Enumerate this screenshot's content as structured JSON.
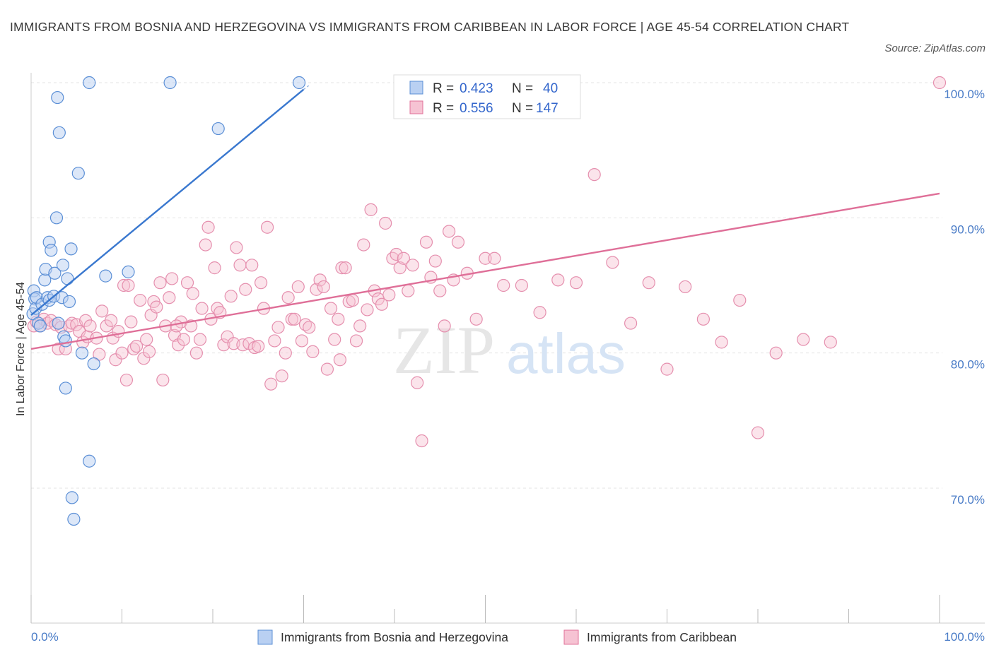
{
  "title": "IMMIGRANTS FROM BOSNIA AND HERZEGOVINA VS IMMIGRANTS FROM CARIBBEAN IN LABOR FORCE | AGE 45-54 CORRELATION CHART",
  "source": "Source: ZipAtlas.com",
  "watermark": {
    "zip": "ZIP",
    "atlas": "atlas"
  },
  "colors": {
    "blue": "#5b8fd6",
    "blue_fill": "#b9d0f2",
    "pink": "#e0729a",
    "pink_fill": "#f6c3d3",
    "tick": "#4a7cc7"
  },
  "legend": {
    "r_label": "R =",
    "n_label": "N =",
    "rows": [
      {
        "r": "0.423",
        "n": "40"
      },
      {
        "r": "0.556",
        "n": "147"
      }
    ]
  },
  "chart_data": {
    "type": "scatter",
    "title": "IMMIGRANTS FROM BOSNIA AND HERZEGOVINA VS IMMIGRANTS FROM CARIBBEAN IN LABOR FORCE | AGE 45-54 CORRELATION CHART",
    "xlabel": "",
    "ylabel": "In Labor Force | Age 45-54",
    "xlim": [
      0,
      100
    ],
    "ylim": [
      60,
      100
    ],
    "x_tick_labels": [
      "0.0%",
      "100.0%"
    ],
    "y_ticks": [
      70,
      80,
      90,
      100
    ],
    "y_tick_labels": [
      "70.0%",
      "80.0%",
      "90.0%",
      "100.0%"
    ],
    "grid": true,
    "legend_position": "top-center",
    "series": [
      {
        "name": "Immigrants from Bosnia and Herzegovina",
        "r": 0.423,
        "n": 40,
        "trend": [
          [
            0.0,
            82.8
          ],
          [
            30.0,
            99.5
          ]
        ],
        "points": [
          [
            0.2,
            82.9
          ],
          [
            0.3,
            84.6
          ],
          [
            0.4,
            84.0
          ],
          [
            0.5,
            83.3
          ],
          [
            0.6,
            84.1
          ],
          [
            0.8,
            82.2
          ],
          [
            1.0,
            82.0
          ],
          [
            1.2,
            83.6
          ],
          [
            1.5,
            85.4
          ],
          [
            1.6,
            86.2
          ],
          [
            1.8,
            84.1
          ],
          [
            2.0,
            83.9
          ],
          [
            2.0,
            88.2
          ],
          [
            2.2,
            87.6
          ],
          [
            2.5,
            84.2
          ],
          [
            2.6,
            85.9
          ],
          [
            2.8,
            90.0
          ],
          [
            2.9,
            98.9
          ],
          [
            3.1,
            96.3
          ],
          [
            3.4,
            84.1
          ],
          [
            3.5,
            86.5
          ],
          [
            3.6,
            81.2
          ],
          [
            3.8,
            80.9
          ],
          [
            3.8,
            77.4
          ],
          [
            4.0,
            85.5
          ],
          [
            4.2,
            83.8
          ],
          [
            4.4,
            87.7
          ],
          [
            4.5,
            69.3
          ],
          [
            4.7,
            67.7
          ],
          [
            5.2,
            93.3
          ],
          [
            5.6,
            80.0
          ],
          [
            6.4,
            100.0
          ],
          [
            6.4,
            72.0
          ],
          [
            6.9,
            79.2
          ],
          [
            8.2,
            85.7
          ],
          [
            10.7,
            86.0
          ],
          [
            15.3,
            100.0
          ],
          [
            20.6,
            96.6
          ],
          [
            29.5,
            100.0
          ],
          [
            3.0,
            82.2
          ]
        ]
      },
      {
        "name": "Immigrants from Caribbean",
        "r": 0.556,
        "n": 147,
        "trend": [
          [
            0.0,
            80.3
          ],
          [
            100.0,
            91.8
          ]
        ],
        "points": [
          [
            0.3,
            82.0
          ],
          [
            0.6,
            82.3
          ],
          [
            1.0,
            82.0
          ],
          [
            1.4,
            82.5
          ],
          [
            1.8,
            82.2
          ],
          [
            2.2,
            82.4
          ],
          [
            2.7,
            82.1
          ],
          [
            3.0,
            80.3
          ],
          [
            3.3,
            81.9
          ],
          [
            3.8,
            80.3
          ],
          [
            4.2,
            82.0
          ],
          [
            4.5,
            82.2
          ],
          [
            5.0,
            82.1
          ],
          [
            5.3,
            81.6
          ],
          [
            5.7,
            80.8
          ],
          [
            6.0,
            82.4
          ],
          [
            6.2,
            81.2
          ],
          [
            6.5,
            82.0
          ],
          [
            7.2,
            81.1
          ],
          [
            7.5,
            79.9
          ],
          [
            7.8,
            83.1
          ],
          [
            8.3,
            82.0
          ],
          [
            8.8,
            82.4
          ],
          [
            9.0,
            81.1
          ],
          [
            9.3,
            79.5
          ],
          [
            9.6,
            81.6
          ],
          [
            10.0,
            80.0
          ],
          [
            10.2,
            85.0
          ],
          [
            10.5,
            78.0
          ],
          [
            10.7,
            85.0
          ],
          [
            11.0,
            82.3
          ],
          [
            11.3,
            80.3
          ],
          [
            11.6,
            80.5
          ],
          [
            12.0,
            83.9
          ],
          [
            12.4,
            79.6
          ],
          [
            12.7,
            81.0
          ],
          [
            13.0,
            80.1
          ],
          [
            13.2,
            82.8
          ],
          [
            13.5,
            83.8
          ],
          [
            13.8,
            83.4
          ],
          [
            14.2,
            85.2
          ],
          [
            14.5,
            78.0
          ],
          [
            14.8,
            82.0
          ],
          [
            15.2,
            84.1
          ],
          [
            15.5,
            85.5
          ],
          [
            15.8,
            81.3
          ],
          [
            16.2,
            80.6
          ],
          [
            16.5,
            82.3
          ],
          [
            16.8,
            81.0
          ],
          [
            17.2,
            85.2
          ],
          [
            17.6,
            82.0
          ],
          [
            17.8,
            84.4
          ],
          [
            18.2,
            80.0
          ],
          [
            18.6,
            81.0
          ],
          [
            18.8,
            83.3
          ],
          [
            19.2,
            88.0
          ],
          [
            19.5,
            89.3
          ],
          [
            19.8,
            82.5
          ],
          [
            20.2,
            86.3
          ],
          [
            20.5,
            83.3
          ],
          [
            20.8,
            83.0
          ],
          [
            21.2,
            80.6
          ],
          [
            21.6,
            81.2
          ],
          [
            22.0,
            84.2
          ],
          [
            22.3,
            80.7
          ],
          [
            22.6,
            87.8
          ],
          [
            23.0,
            86.5
          ],
          [
            23.3,
            80.6
          ],
          [
            23.6,
            84.7
          ],
          [
            24.0,
            80.7
          ],
          [
            24.3,
            86.5
          ],
          [
            24.6,
            80.4
          ],
          [
            25.0,
            80.5
          ],
          [
            25.3,
            85.2
          ],
          [
            25.6,
            83.3
          ],
          [
            26.0,
            89.3
          ],
          [
            26.4,
            77.7
          ],
          [
            26.8,
            80.9
          ],
          [
            27.2,
            81.9
          ],
          [
            27.6,
            78.3
          ],
          [
            28.0,
            80.0
          ],
          [
            28.3,
            84.1
          ],
          [
            28.7,
            82.5
          ],
          [
            29.0,
            82.5
          ],
          [
            29.4,
            84.9
          ],
          [
            29.8,
            80.9
          ],
          [
            30.2,
            82.1
          ],
          [
            30.6,
            81.9
          ],
          [
            31.0,
            80.1
          ],
          [
            31.4,
            84.7
          ],
          [
            31.8,
            85.4
          ],
          [
            32.2,
            84.9
          ],
          [
            32.6,
            78.8
          ],
          [
            33.0,
            83.3
          ],
          [
            33.4,
            81.0
          ],
          [
            33.8,
            82.5
          ],
          [
            34.2,
            86.3
          ],
          [
            34.6,
            86.3
          ],
          [
            35.0,
            83.8
          ],
          [
            35.4,
            83.9
          ],
          [
            35.8,
            80.9
          ],
          [
            36.2,
            82.0
          ],
          [
            36.6,
            88.0
          ],
          [
            37.0,
            83.2
          ],
          [
            37.4,
            90.6
          ],
          [
            37.8,
            84.6
          ],
          [
            38.2,
            84.0
          ],
          [
            38.6,
            83.6
          ],
          [
            39.0,
            89.6
          ],
          [
            39.4,
            84.3
          ],
          [
            39.8,
            87.0
          ],
          [
            40.2,
            87.3
          ],
          [
            40.6,
            86.3
          ],
          [
            41.0,
            87.0
          ],
          [
            41.5,
            84.6
          ],
          [
            42.0,
            86.5
          ],
          [
            42.5,
            77.8
          ],
          [
            43.0,
            73.5
          ],
          [
            43.5,
            88.2
          ],
          [
            44.0,
            85.6
          ],
          [
            44.5,
            86.8
          ],
          [
            45.0,
            84.6
          ],
          [
            45.5,
            82.0
          ],
          [
            46.0,
            89.0
          ],
          [
            46.5,
            85.4
          ],
          [
            47.0,
            88.2
          ],
          [
            48.0,
            85.9
          ],
          [
            49.0,
            82.5
          ],
          [
            50.0,
            87.0
          ],
          [
            51.0,
            87.0
          ],
          [
            52.0,
            85.0
          ],
          [
            54.0,
            85.0
          ],
          [
            56.0,
            83.0
          ],
          [
            58.0,
            85.4
          ],
          [
            60.0,
            85.2
          ],
          [
            62.0,
            93.2
          ],
          [
            64.0,
            86.7
          ],
          [
            66.0,
            82.2
          ],
          [
            68.0,
            85.2
          ],
          [
            70.0,
            78.8
          ],
          [
            72.0,
            84.9
          ],
          [
            74.0,
            82.5
          ],
          [
            76.0,
            80.8
          ],
          [
            78.0,
            83.9
          ],
          [
            80.0,
            74.1
          ],
          [
            82.0,
            80.0
          ],
          [
            85.0,
            81.0
          ],
          [
            88.0,
            80.8
          ],
          [
            100.0,
            100.0
          ],
          [
            16.0,
            82.0
          ],
          [
            34.0,
            79.5
          ]
        ]
      }
    ]
  }
}
